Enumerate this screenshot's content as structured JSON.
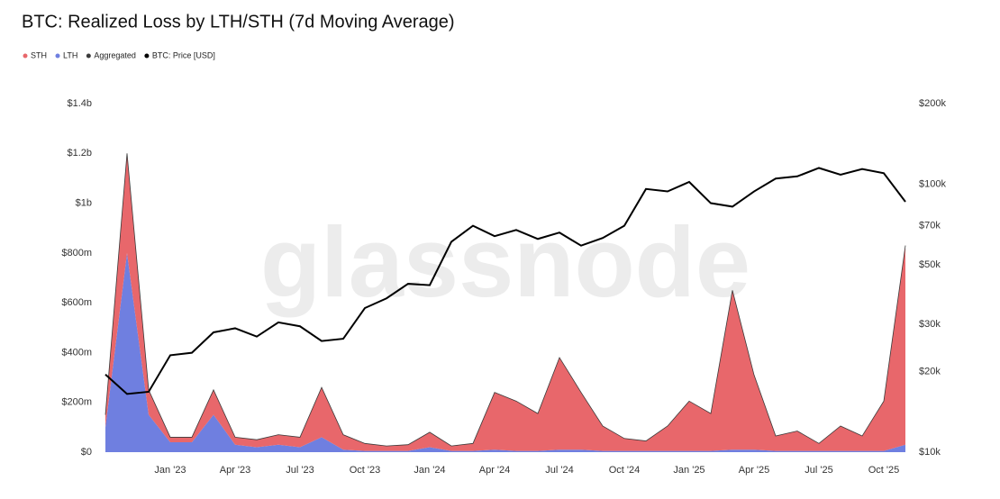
{
  "chart_data": {
    "type": "area",
    "title": "BTC: Realized Loss by LTH/STH (7d Moving Average)",
    "watermark": "glassnode",
    "stacked": true,
    "x": [
      "Oct '22",
      "Nov '22",
      "Dec '22",
      "Jan '23",
      "Feb '23",
      "Mar '23",
      "Apr '23",
      "May '23",
      "Jun '23",
      "Jul '23",
      "Aug '23",
      "Sep '23",
      "Oct '23",
      "Nov '23",
      "Dec '23",
      "Jan '24",
      "Feb '24",
      "Mar '24",
      "Apr '24",
      "May '24",
      "Jun '24",
      "Jul '24",
      "Aug '24",
      "Sep '24",
      "Oct '24",
      "Nov '24",
      "Dec '24",
      "Jan '25",
      "Feb '25",
      "Mar '25",
      "Apr '25",
      "May '25",
      "Jun '25",
      "Jul '25",
      "Aug '25",
      "Sep '25",
      "Oct '25",
      "Nov '25"
    ],
    "xticks": [
      "Jan '23",
      "Apr '23",
      "Jul '23",
      "Oct '23",
      "Jan '24",
      "Apr '24",
      "Jul '24",
      "Oct '24",
      "Jan '25",
      "Apr '25",
      "Jul '25",
      "Oct '25"
    ],
    "series": [
      {
        "name": "STH",
        "type": "area",
        "color": "#e8676b",
        "values": [
          50000000,
          400000000,
          100000000,
          20000000,
          20000000,
          100000000,
          30000000,
          30000000,
          40000000,
          40000000,
          200000000,
          60000000,
          30000000,
          20000000,
          25000000,
          60000000,
          20000000,
          30000000,
          230000000,
          200000000,
          150000000,
          370000000,
          230000000,
          100000000,
          50000000,
          40000000,
          100000000,
          200000000,
          150000000,
          640000000,
          300000000,
          60000000,
          80000000,
          30000000,
          100000000,
          60000000,
          200000000,
          800000000
        ]
      },
      {
        "name": "LTH",
        "type": "area",
        "color": "#6f7fe0",
        "values": [
          100000000,
          800000000,
          150000000,
          40000000,
          40000000,
          150000000,
          30000000,
          20000000,
          30000000,
          20000000,
          60000000,
          10000000,
          5000000,
          5000000,
          5000000,
          20000000,
          5000000,
          5000000,
          10000000,
          5000000,
          5000000,
          10000000,
          10000000,
          5000000,
          5000000,
          5000000,
          5000000,
          5000000,
          5000000,
          10000000,
          10000000,
          5000000,
          5000000,
          5000000,
          5000000,
          5000000,
          5000000,
          30000000
        ]
      },
      {
        "name": "Aggregated",
        "type": "line",
        "color": "#3a3a3a",
        "values": [
          150000000,
          1200000000,
          250000000,
          60000000,
          60000000,
          250000000,
          60000000,
          50000000,
          70000000,
          60000000,
          260000000,
          70000000,
          35000000,
          25000000,
          30000000,
          80000000,
          25000000,
          35000000,
          240000000,
          205000000,
          155000000,
          380000000,
          240000000,
          105000000,
          55000000,
          45000000,
          105000000,
          205000000,
          155000000,
          650000000,
          310000000,
          65000000,
          85000000,
          35000000,
          105000000,
          65000000,
          205000000,
          830000000
        ]
      },
      {
        "name": "BTC: Price [USD]",
        "type": "line",
        "axis": "y2",
        "color": "#000000",
        "values": [
          19500,
          16500,
          16800,
          23000,
          23500,
          28000,
          29000,
          27000,
          30500,
          29500,
          26000,
          26500,
          34500,
          37500,
          42500,
          42000,
          61000,
          70000,
          64000,
          67500,
          62500,
          66000,
          59000,
          63000,
          70000,
          96000,
          94000,
          102000,
          85000,
          82500,
          94000,
          105000,
          107000,
          115000,
          108500,
          114000,
          110000,
          86000
        ]
      }
    ],
    "ylim": [
      0,
      1400000000
    ],
    "yticks": [
      {
        "value": 0,
        "label": "$0"
      },
      {
        "value": 200000000,
        "label": "$200m"
      },
      {
        "value": 400000000,
        "label": "$400m"
      },
      {
        "value": 600000000,
        "label": "$600m"
      },
      {
        "value": 800000000,
        "label": "$800m"
      },
      {
        "value": 1000000000,
        "label": "$1b"
      },
      {
        "value": 1200000000,
        "label": "$1.2b"
      },
      {
        "value": 1400000000,
        "label": "$1.4b"
      }
    ],
    "y2lim": [
      10000,
      200000
    ],
    "y2log": true,
    "y2ticks": [
      {
        "value": 10000,
        "label": "$10k"
      },
      {
        "value": 20000,
        "label": "$20k"
      },
      {
        "value": 30000,
        "label": "$30k"
      },
      {
        "value": 50000,
        "label": "$50k"
      },
      {
        "value": 70000,
        "label": "$70k"
      },
      {
        "value": 100000,
        "label": "$100k"
      },
      {
        "value": 200000,
        "label": "$200k"
      }
    ],
    "legend": "top-left"
  }
}
